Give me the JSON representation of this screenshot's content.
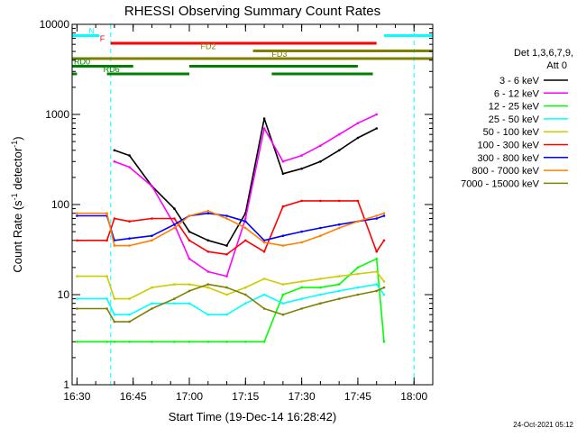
{
  "chart_data": {
    "type": "line",
    "title": "RHESSI Observing Summary Count Rates",
    "xlabel": "Start Time (19-Dec-14 16:28:42)",
    "ylabel": "Count Rate (s⁻¹ detector⁻¹)",
    "ylabel_parts": {
      "main": "Count Rate (s",
      "exp1": "-1",
      "mid": " detector",
      "exp2": "-1",
      "end": ")"
    },
    "y_scale": "log",
    "ylim": [
      1,
      10000
    ],
    "xlim": [
      "16:28:42",
      "18:05:00"
    ],
    "x_ticks": [
      "16:30",
      "16:45",
      "17:00",
      "17:15",
      "17:30",
      "17:45",
      "18:00"
    ],
    "y_ticks": [
      "1",
      "10",
      "100",
      "1000",
      "10000"
    ],
    "grid": false,
    "legend_position": "right",
    "legend_header": [
      "Det 1,3,6,7,9,",
      "Att 0"
    ],
    "timestamp": "24-Oct-2021 05:12",
    "colors": {
      "night": "#00ffff",
      "flare": "#ff0000",
      "fd": "#808000",
      "rd": "#008000",
      "background": "#ffffff",
      "axes": "#000000"
    },
    "series": [
      {
        "name": "3 - 6 keV",
        "color": "#000000"
      },
      {
        "name": "6 - 12 keV",
        "color": "#ff00ff"
      },
      {
        "name": "12 - 25 keV",
        "color": "#00ff00"
      },
      {
        "name": "25 - 50 keV",
        "color": "#00ffff"
      },
      {
        "name": "50 - 100 keV",
        "color": "#cccc00"
      },
      {
        "name": "100 - 300 keV",
        "color": "#ff0000"
      },
      {
        "name": "300 - 800 keV",
        "color": "#0000ff"
      },
      {
        "name": "800 - 7000 keV",
        "color": "#ff8000"
      },
      {
        "name": "7000 - 15000 keV",
        "color": "#808000"
      }
    ],
    "night_intervals": [
      [
        "16:28:42",
        "16:39:00"
      ],
      [
        "18:00:00",
        "18:05:00"
      ]
    ],
    "flag_bars": [
      {
        "label": "N",
        "color": "#00ffff",
        "row": 1,
        "segments": [
          [
            "16:28:42",
            "16:36:00"
          ],
          [
            "17:52:00",
            "18:05:00"
          ]
        ]
      },
      {
        "label": "F",
        "color": "#ff0000",
        "row": 2,
        "segments": [
          [
            "16:39:00",
            "17:50:00"
          ]
        ]
      },
      {
        "label": "FD2",
        "color": "#808000",
        "row": 3,
        "segments": [
          [
            "17:17:00",
            "18:05:00"
          ]
        ]
      },
      {
        "label": "FD3",
        "color": "#808000",
        "row": 4,
        "segments": [
          [
            "16:28:42",
            "18:05:00"
          ]
        ]
      },
      {
        "label": "RD0",
        "color": "#008000",
        "row": 5,
        "segments": [
          [
            "16:28:42",
            "16:45:00"
          ],
          [
            "17:00:00",
            "17:45:00"
          ]
        ]
      },
      {
        "label": "RD6",
        "color": "#008000",
        "row": 6,
        "segments": [
          [
            "16:28:42",
            "16:30:00"
          ],
          [
            "16:38:00",
            "17:00:00"
          ],
          [
            "17:22:00",
            "17:49:00"
          ]
        ]
      }
    ],
    "series_data": {
      "x": [
        "16:30",
        "16:38",
        "16:40",
        "16:44",
        "16:50",
        "16:56",
        "17:00",
        "17:05",
        "17:10",
        "17:15",
        "17:20",
        "17:25",
        "17:30",
        "17:35",
        "17:40",
        "17:45",
        "17:50",
        "17:52"
      ],
      "values": [
        [
          null,
          null,
          400,
          350,
          160,
          90,
          50,
          40,
          35,
          80,
          900,
          220,
          250,
          300,
          400,
          550,
          700,
          null
        ],
        [
          null,
          null,
          300,
          260,
          160,
          60,
          25,
          18,
          16,
          70,
          700,
          300,
          350,
          450,
          600,
          800,
          1000,
          null
        ],
        [
          3,
          3,
          3,
          3,
          3,
          3,
          3,
          3,
          3,
          3,
          3,
          10,
          12,
          12,
          13,
          20,
          25,
          3
        ],
        [
          9,
          9,
          6,
          6,
          8,
          8,
          8,
          6,
          6,
          8,
          10,
          8,
          9,
          10,
          11,
          12,
          13,
          10
        ],
        [
          16,
          16,
          9,
          9,
          12,
          13,
          13,
          12,
          10,
          12,
          15,
          13,
          14,
          15,
          16,
          17,
          18,
          14
        ],
        [
          40,
          40,
          70,
          65,
          70,
          70,
          40,
          30,
          28,
          40,
          30,
          95,
          110,
          110,
          110,
          110,
          30,
          40
        ],
        [
          75,
          75,
          40,
          42,
          45,
          60,
          75,
          80,
          75,
          65,
          40,
          45,
          50,
          55,
          60,
          65,
          70,
          75
        ],
        [
          80,
          80,
          35,
          35,
          40,
          55,
          75,
          85,
          70,
          55,
          38,
          35,
          38,
          45,
          55,
          65,
          75,
          80
        ],
        [
          7,
          7,
          5,
          5,
          7,
          9,
          11,
          13,
          12,
          10,
          7,
          6,
          7,
          8,
          9,
          10,
          11,
          12
        ]
      ]
    }
  }
}
